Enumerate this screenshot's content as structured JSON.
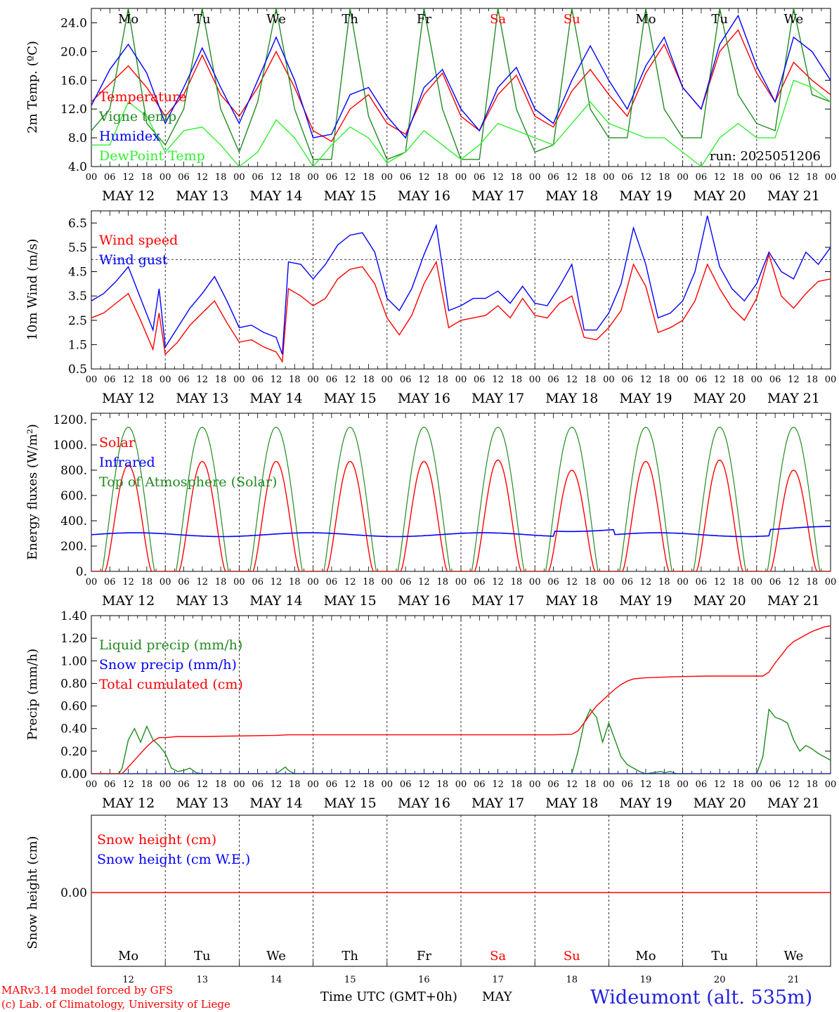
{
  "footer": {
    "credit_line1": "MARv3.14 model forced by GFS",
    "credit_line2": "(c) Lab. of Climatology, University of Liege",
    "xlabel": "Time UTC (GMT+0h)",
    "month": "MAY",
    "station": "Wideumont (alt. 535m)"
  },
  "axis": {
    "hour_labels": [
      "00",
      "06",
      "12",
      "18"
    ],
    "last_hour_label": "00",
    "date_labels": [
      "MAY 12",
      "MAY 13",
      "MAY 14",
      "MAY 15",
      "MAY 16",
      "MAY 17",
      "MAY 18",
      "MAY 19",
      "MAY 20",
      "MAY 21"
    ],
    "weekday_labels": [
      "Mo",
      "Tu",
      "We",
      "Th",
      "Fr",
      "Sa",
      "Su",
      "Mo",
      "Tu",
      "We"
    ],
    "weekend_flags": [
      false,
      false,
      false,
      false,
      false,
      true,
      true,
      false,
      false,
      false
    ],
    "day_numbers": [
      "12",
      "13",
      "14",
      "15",
      "16",
      "17",
      "18",
      "19",
      "20",
      "21"
    ],
    "days": 10
  },
  "colors": {
    "red": "#ff0000",
    "darkgreen": "#228b22",
    "blue": "#0000ff",
    "lightgreen": "#33ee33",
    "axis": "#000000",
    "footer_blue": "#2222dd"
  },
  "chart_data": [
    {
      "type": "line",
      "ylabel": "2m Temp. (ºC)",
      "ylim": [
        4,
        26
      ],
      "yticks": [
        "4.0",
        "8.0",
        "12.0",
        "16.0",
        "20.0",
        "24.0"
      ],
      "annotation": "run: 2025051206",
      "series": [
        {
          "name": "Temperature",
          "color": "red",
          "x": [
            0,
            6,
            12,
            18,
            24,
            30,
            36,
            42,
            48,
            54,
            60,
            66,
            72,
            78,
            84,
            90,
            96,
            102,
            108,
            114,
            120,
            126,
            132,
            138,
            144,
            150,
            156,
            162,
            168,
            174,
            180,
            186,
            192,
            198,
            204,
            210,
            216,
            222,
            228,
            234,
            240
          ],
          "y": [
            13,
            15.5,
            18,
            15,
            11,
            14,
            19.5,
            14,
            11,
            15,
            20,
            15,
            9,
            7.5,
            12,
            14,
            10,
            8.5,
            14,
            17,
            11,
            9,
            14,
            16.7,
            11,
            9.5,
            14.5,
            17.5,
            14,
            11,
            17,
            21,
            15,
            12,
            20,
            23,
            17,
            13,
            18.5,
            16,
            14
          ]
        },
        {
          "name": "Vigne temp",
          "color": "darkgreen",
          "x": [
            0,
            6,
            12,
            18,
            24,
            30,
            36,
            42,
            48,
            54,
            60,
            66,
            72,
            78,
            84,
            90,
            96,
            102,
            108,
            114,
            120,
            126,
            132,
            138,
            144,
            150,
            156,
            162,
            168,
            174,
            180,
            186,
            192,
            198,
            204,
            210,
            216,
            222,
            228,
            234,
            240
          ],
          "y": [
            9,
            12,
            26,
            10,
            7,
            12,
            26,
            12,
            6,
            13,
            26,
            12,
            5,
            5,
            26,
            11,
            5,
            6,
            26,
            12,
            5,
            5,
            26,
            12,
            6,
            7,
            26,
            12,
            8,
            8,
            26,
            12,
            8,
            8,
            26,
            14,
            10,
            9,
            26,
            14,
            13
          ]
        },
        {
          "name": "Humidex",
          "color": "blue",
          "x": [
            0,
            6,
            12,
            18,
            24,
            30,
            36,
            42,
            48,
            54,
            60,
            66,
            72,
            78,
            84,
            90,
            96,
            102,
            108,
            114,
            120,
            126,
            132,
            138,
            144,
            150,
            156,
            162,
            168,
            174,
            180,
            186,
            192,
            198,
            204,
            210,
            216,
            222,
            228,
            234,
            240
          ],
          "y": [
            12.5,
            17.5,
            21,
            17,
            10,
            15,
            20.5,
            15,
            10,
            16,
            22,
            16,
            8,
            8.5,
            14,
            15,
            11,
            8,
            15,
            17.5,
            12,
            9,
            15,
            17.8,
            12,
            10,
            16,
            20.8,
            16,
            12,
            18,
            22,
            15,
            12,
            21,
            25,
            18,
            13,
            22,
            20,
            16
          ]
        },
        {
          "name": "DewPoint Temp",
          "color": "lightgreen",
          "x": [
            0,
            6,
            12,
            18,
            24,
            30,
            36,
            42,
            48,
            54,
            60,
            66,
            72,
            78,
            84,
            90,
            96,
            102,
            108,
            114,
            120,
            126,
            132,
            138,
            144,
            150,
            156,
            162,
            168,
            174,
            180,
            186,
            192,
            198,
            204,
            210,
            216,
            222,
            228,
            234,
            240
          ],
          "y": [
            7,
            7,
            13,
            11,
            6,
            9,
            9.5,
            7,
            4,
            6,
            10.5,
            8,
            4,
            7,
            9.5,
            8,
            4.5,
            6,
            9,
            7,
            5,
            7,
            10,
            9,
            8,
            7,
            10,
            13,
            10,
            9,
            8,
            8,
            6,
            4,
            8,
            10,
            8,
            8,
            16,
            15,
            13
          ]
        }
      ]
    },
    {
      "type": "line",
      "ylabel": "10m Wind (m/s)",
      "ylim": [
        0.5,
        7
      ],
      "yticks": [
        "0.5",
        "1.5",
        "2.5",
        "3.5",
        "4.5",
        "5.5",
        "6.5"
      ],
      "reference_line": 5,
      "series": [
        {
          "name": "Wind speed",
          "color": "red",
          "x": [
            0,
            4,
            8,
            12,
            16,
            20,
            22,
            24,
            28,
            32,
            36,
            40,
            44,
            48,
            52,
            56,
            60,
            62,
            64,
            68,
            72,
            76,
            80,
            84,
            88,
            92,
            96,
            100,
            104,
            108,
            112,
            116,
            120,
            124,
            128,
            132,
            136,
            140,
            144,
            148,
            152,
            156,
            160,
            164,
            168,
            172,
            176,
            180,
            184,
            188,
            192,
            196,
            200,
            204,
            208,
            212,
            216,
            220,
            224,
            228,
            232,
            236,
            240
          ],
          "y": [
            2.6,
            2.8,
            3.2,
            3.6,
            2.5,
            1.3,
            2.8,
            1.1,
            1.6,
            2.3,
            2.8,
            3.3,
            2.4,
            1.6,
            1.7,
            1.4,
            1.2,
            0.8,
            3.8,
            3.5,
            3.1,
            3.4,
            4.2,
            4.6,
            4.7,
            4.0,
            2.6,
            1.9,
            2.7,
            4.0,
            4.9,
            2.2,
            2.5,
            2.6,
            2.7,
            3.1,
            2.6,
            3.4,
            2.7,
            2.6,
            3.2,
            3.5,
            1.8,
            1.7,
            2.2,
            2.9,
            4.8,
            3.9,
            2.0,
            2.2,
            2.5,
            3.3,
            4.8,
            3.8,
            3.0,
            2.5,
            3.4,
            5.2,
            3.5,
            3.0,
            3.6,
            4.1,
            4.2
          ]
        },
        {
          "name": "Wind gust",
          "color": "blue",
          "x": [
            0,
            4,
            8,
            12,
            16,
            20,
            22,
            24,
            28,
            32,
            36,
            40,
            44,
            48,
            52,
            56,
            60,
            62,
            64,
            68,
            72,
            76,
            80,
            84,
            88,
            92,
            96,
            100,
            104,
            108,
            112,
            116,
            120,
            124,
            128,
            132,
            136,
            140,
            144,
            148,
            152,
            156,
            160,
            164,
            168,
            172,
            176,
            180,
            184,
            188,
            192,
            196,
            200,
            204,
            208,
            212,
            216,
            220,
            224,
            228,
            232,
            236,
            240
          ],
          "y": [
            3.3,
            3.6,
            4.1,
            4.7,
            3.4,
            2.1,
            3.8,
            1.4,
            2.2,
            3.0,
            3.6,
            4.3,
            3.3,
            2.2,
            2.3,
            2.0,
            1.8,
            1.1,
            4.9,
            4.8,
            4.2,
            4.8,
            5.6,
            6.0,
            6.1,
            5.3,
            3.4,
            2.9,
            3.8,
            5.2,
            6.4,
            2.9,
            3.1,
            3.4,
            3.4,
            3.7,
            3.2,
            3.9,
            3.2,
            3.1,
            3.9,
            4.8,
            2.1,
            2.1,
            2.8,
            4.0,
            6.3,
            4.8,
            2.6,
            2.8,
            3.3,
            4.5,
            6.8,
            4.7,
            3.8,
            3.3,
            4.0,
            5.3,
            4.5,
            4.2,
            5.3,
            4.8,
            5.5
          ]
        }
      ]
    },
    {
      "type": "line",
      "ylabel": "Energy fluxes (W/m²)",
      "ylim": [
        0,
        1250
      ],
      "yticks": [
        "0.",
        "200.",
        "400.",
        "600.",
        "800.",
        "1000.",
        "1200."
      ],
      "solar_peaks": [
        840,
        870,
        870,
        870,
        870,
        880,
        800,
        870,
        880,
        800
      ],
      "toa_peak": 1140,
      "infrared_level": 290,
      "series": [
        {
          "name": "Solar",
          "color": "red"
        },
        {
          "name": "Infrared",
          "color": "blue"
        },
        {
          "name": "Top of Atmosphere (Solar)",
          "color": "darkgreen"
        }
      ]
    },
    {
      "type": "line",
      "ylabel": "Precip (mm/h)",
      "ylim": [
        0,
        1.4
      ],
      "yticks": [
        "0.00",
        "0.20",
        "0.40",
        "0.60",
        "0.80",
        "1.00",
        "1.20",
        "1.40"
      ],
      "series": [
        {
          "name": "Liquid precip (mm/h)",
          "color": "darkgreen",
          "x": [
            0,
            9,
            10,
            12,
            14,
            16,
            18,
            20,
            22,
            24,
            26,
            28,
            30,
            32,
            34,
            36,
            60,
            62,
            63,
            64,
            66,
            156,
            158,
            160,
            162,
            164,
            166,
            168,
            170,
            172,
            174,
            176,
            178,
            180,
            185,
            186,
            188,
            190,
            216,
            218,
            220,
            222,
            224,
            226,
            228,
            230,
            232,
            234,
            236,
            238,
            240
          ],
          "y": [
            0,
            0,
            0.05,
            0.3,
            0.4,
            0.28,
            0.42,
            0.3,
            0.25,
            0.18,
            0.05,
            0.02,
            0.03,
            0.05,
            0.01,
            0,
            0,
            0.04,
            0.06,
            0.03,
            0,
            0,
            0.2,
            0.45,
            0.57,
            0.5,
            0.28,
            0.45,
            0.3,
            0.15,
            0.08,
            0.05,
            0.02,
            0,
            0.02,
            0.01,
            0.02,
            0,
            0,
            0.15,
            0.57,
            0.5,
            0.48,
            0.45,
            0.3,
            0.2,
            0.25,
            0.22,
            0.18,
            0.15,
            0.12
          ]
        },
        {
          "name": "Snow precip (mm/h)",
          "color": "blue",
          "x": [
            0,
            240
          ],
          "y": [
            0,
            0
          ]
        },
        {
          "name": "Total cumulated (cm)",
          "color": "red",
          "x": [
            0,
            10,
            14,
            18,
            20,
            22,
            24,
            28,
            36,
            60,
            64,
            150,
            156,
            158,
            160,
            162,
            164,
            166,
            168,
            170,
            172,
            174,
            176,
            180,
            190,
            200,
            216,
            218,
            220,
            222,
            224,
            226,
            228,
            230,
            232,
            234,
            236,
            238,
            240
          ],
          "y": [
            0,
            0,
            0.12,
            0.24,
            0.29,
            0.32,
            0.32,
            0.33,
            0.33,
            0.34,
            0.345,
            0.345,
            0.35,
            0.38,
            0.45,
            0.53,
            0.6,
            0.65,
            0.7,
            0.75,
            0.79,
            0.82,
            0.84,
            0.85,
            0.86,
            0.865,
            0.865,
            0.865,
            0.9,
            0.98,
            1.05,
            1.12,
            1.17,
            1.2,
            1.23,
            1.26,
            1.28,
            1.3,
            1.31
          ]
        }
      ]
    },
    {
      "type": "line",
      "ylabel": "Snow height (cm)",
      "yticks": [
        "0.00"
      ],
      "series": [
        {
          "name": "Snow height (cm)",
          "color": "red",
          "x": [
            0,
            240
          ],
          "y": [
            0,
            0
          ]
        },
        {
          "name": "Snow height (cm W.E.)",
          "color": "blue",
          "x": [
            0,
            240
          ],
          "y": [
            0,
            0
          ]
        }
      ]
    }
  ]
}
